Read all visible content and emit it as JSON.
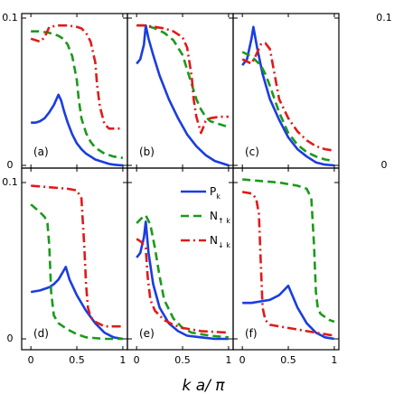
{
  "figure": {
    "xlabel": "k a/ π",
    "legend": {
      "entries": [
        {
          "label_main": "P",
          "label_sub": "k",
          "color": "#1a3de0",
          "dash": "solid"
        },
        {
          "label_main": "N",
          "label_sub": "↑ k",
          "color": "#1a9a1a",
          "dash": "dashed"
        },
        {
          "label_main": "N",
          "label_sub": "↓ k",
          "color": "#e01a1a",
          "dash": "dashdot"
        }
      ]
    }
  },
  "chart_data": [
    {
      "type": "line",
      "panel": "(a)",
      "xlim": [
        -0.1,
        1.05
      ],
      "ylim": [
        -0.005,
        0.105
      ],
      "x_ticks": [],
      "y_ticks": [
        "0",
        "0.1"
      ],
      "series": [
        {
          "name": "P_k",
          "x": [
            0,
            0.05,
            0.1,
            0.15,
            0.2,
            0.25,
            0.3,
            0.33,
            0.36,
            0.4,
            0.45,
            0.5,
            0.55,
            0.6,
            0.65,
            0.7,
            0.75,
            0.8,
            0.85,
            0.9,
            0.95,
            1.0
          ],
          "y": [
            0.029,
            0.029,
            0.03,
            0.032,
            0.036,
            0.041,
            0.048,
            0.044,
            0.037,
            0.029,
            0.021,
            0.015,
            0.011,
            0.008,
            0.006,
            0.004,
            0.003,
            0.002,
            0.001,
            0.0005,
            0.0002,
            0.0
          ]
        },
        {
          "name": "N_up",
          "x": [
            0,
            0.1,
            0.2,
            0.3,
            0.35,
            0.4,
            0.45,
            0.5,
            0.52,
            0.55,
            0.6,
            0.65,
            0.7,
            0.8,
            0.9,
            1.0
          ],
          "y": [
            0.091,
            0.091,
            0.09,
            0.088,
            0.086,
            0.082,
            0.074,
            0.058,
            0.045,
            0.032,
            0.022,
            0.016,
            0.012,
            0.008,
            0.006,
            0.005
          ]
        },
        {
          "name": "N_down",
          "x": [
            0,
            0.1,
            0.15,
            0.2,
            0.3,
            0.4,
            0.5,
            0.55,
            0.6,
            0.65,
            0.7,
            0.72,
            0.75,
            0.8,
            0.85,
            0.9,
            1.0
          ],
          "y": [
            0.086,
            0.084,
            0.087,
            0.094,
            0.095,
            0.095,
            0.094,
            0.093,
            0.09,
            0.084,
            0.07,
            0.055,
            0.04,
            0.028,
            0.025,
            0.025,
            0.025
          ]
        }
      ]
    },
    {
      "type": "line",
      "panel": "(b)",
      "xlim": [
        -0.1,
        1.05
      ],
      "ylim": [
        -0.005,
        0.105
      ],
      "x_ticks": [],
      "y_ticks": [],
      "series": [
        {
          "name": "P_k",
          "x": [
            0.0,
            0.04,
            0.08,
            0.1,
            0.13,
            0.18,
            0.25,
            0.35,
            0.45,
            0.55,
            0.65,
            0.75,
            0.85,
            0.95,
            1.0
          ],
          "y": [
            0.069,
            0.072,
            0.082,
            0.095,
            0.086,
            0.075,
            0.061,
            0.045,
            0.032,
            0.021,
            0.013,
            0.007,
            0.003,
            0.001,
            0.0
          ]
        },
        {
          "name": "N_up",
          "x": [
            0,
            0.1,
            0.2,
            0.3,
            0.4,
            0.5,
            0.55,
            0.6,
            0.65,
            0.7,
            0.75,
            0.8,
            0.9,
            1.0
          ],
          "y": [
            0.095,
            0.095,
            0.093,
            0.09,
            0.085,
            0.075,
            0.065,
            0.055,
            0.045,
            0.038,
            0.033,
            0.03,
            0.028,
            0.026
          ]
        },
        {
          "name": "N_down",
          "x": [
            0,
            0.1,
            0.2,
            0.3,
            0.4,
            0.5,
            0.55,
            0.6,
            0.62,
            0.65,
            0.7,
            0.72,
            0.75,
            0.8,
            0.9,
            1.0
          ],
          "y": [
            0.095,
            0.095,
            0.094,
            0.093,
            0.091,
            0.087,
            0.08,
            0.06,
            0.045,
            0.033,
            0.022,
            0.025,
            0.03,
            0.032,
            0.033,
            0.033
          ]
        }
      ]
    },
    {
      "type": "line",
      "panel": "(c)",
      "xlim": [
        -0.1,
        1.05
      ],
      "ylim": [
        -0.005,
        0.105
      ],
      "x_ticks": [],
      "y_ticks": [],
      "series": [
        {
          "name": "P_k",
          "x": [
            0.0,
            0.05,
            0.1,
            0.12,
            0.16,
            0.22,
            0.3,
            0.4,
            0.5,
            0.6,
            0.7,
            0.8,
            0.9,
            1.0
          ],
          "y": [
            0.068,
            0.072,
            0.086,
            0.094,
            0.08,
            0.062,
            0.045,
            0.031,
            0.019,
            0.011,
            0.006,
            0.002,
            0.0005,
            0.0
          ]
        },
        {
          "name": "N_up",
          "x": [
            0,
            0.1,
            0.2,
            0.25,
            0.3,
            0.35,
            0.4,
            0.5,
            0.6,
            0.7,
            0.8,
            0.9,
            1.0
          ],
          "y": [
            0.077,
            0.074,
            0.068,
            0.062,
            0.054,
            0.045,
            0.036,
            0.022,
            0.014,
            0.009,
            0.006,
            0.004,
            0.003
          ]
        },
        {
          "name": "N_down",
          "x": [
            0,
            0.1,
            0.15,
            0.2,
            0.25,
            0.3,
            0.35,
            0.4,
            0.5,
            0.6,
            0.7,
            0.8,
            0.9,
            1.0
          ],
          "y": [
            0.072,
            0.069,
            0.075,
            0.082,
            0.083,
            0.079,
            0.062,
            0.045,
            0.032,
            0.023,
            0.017,
            0.013,
            0.011,
            0.01
          ]
        }
      ]
    },
    {
      "type": "line",
      "panel": "(d)",
      "xlim": [
        -0.1,
        1.05
      ],
      "ylim": [
        -0.005,
        0.105
      ],
      "x_ticks": [],
      "y_ticks": [
        "0",
        "0.1"
      ],
      "series": [
        {
          "name": "P_k",
          "x": [
            0,
            0.1,
            0.2,
            0.25,
            0.3,
            0.35,
            0.38,
            0.42,
            0.5,
            0.6,
            0.7,
            0.8,
            0.9,
            1.0
          ],
          "y": [
            0.03,
            0.031,
            0.033,
            0.035,
            0.038,
            0.043,
            0.046,
            0.038,
            0.028,
            0.018,
            0.01,
            0.004,
            0.001,
            0.0
          ]
        },
        {
          "name": "N_up",
          "x": [
            0,
            0.1,
            0.15,
            0.18,
            0.2,
            0.22,
            0.25,
            0.3,
            0.4,
            0.5,
            0.6,
            0.8,
            1.0
          ],
          "y": [
            0.086,
            0.081,
            0.078,
            0.074,
            0.06,
            0.03,
            0.015,
            0.01,
            0.006,
            0.003,
            0.001,
            0.0,
            0.0
          ]
        },
        {
          "name": "N_down",
          "x": [
            0,
            0.2,
            0.4,
            0.5,
            0.55,
            0.58,
            0.6,
            0.62,
            0.65,
            0.7,
            0.8,
            0.9,
            1.0
          ],
          "y": [
            0.098,
            0.097,
            0.096,
            0.095,
            0.09,
            0.06,
            0.035,
            0.02,
            0.014,
            0.011,
            0.008,
            0.008,
            0.008
          ]
        }
      ]
    },
    {
      "type": "line",
      "panel": "(e)",
      "xlim": [
        -0.1,
        1.05
      ],
      "ylim": [
        -0.005,
        0.105
      ],
      "x_ticks": [],
      "y_ticks": [],
      "series": [
        {
          "name": "P_k",
          "x": [
            0.0,
            0.04,
            0.08,
            0.1,
            0.13,
            0.18,
            0.25,
            0.35,
            0.45,
            0.55,
            0.7,
            0.85,
            1.0
          ],
          "y": [
            0.052,
            0.055,
            0.065,
            0.075,
            0.055,
            0.035,
            0.02,
            0.01,
            0.005,
            0.002,
            0.001,
            0.0,
            0.0
          ]
        },
        {
          "name": "N_up",
          "x": [
            0,
            0.05,
            0.1,
            0.15,
            0.2,
            0.25,
            0.3,
            0.4,
            0.5,
            0.6,
            0.8,
            1.0
          ],
          "y": [
            0.074,
            0.077,
            0.079,
            0.073,
            0.058,
            0.04,
            0.025,
            0.013,
            0.007,
            0.004,
            0.002,
            0.001
          ]
        },
        {
          "name": "N_down",
          "x": [
            0,
            0.05,
            0.1,
            0.12,
            0.15,
            0.2,
            0.25,
            0.3,
            0.4,
            0.5,
            0.7,
            1.0
          ],
          "y": [
            0.064,
            0.062,
            0.058,
            0.04,
            0.025,
            0.018,
            0.015,
            0.012,
            0.009,
            0.007,
            0.005,
            0.004
          ]
        }
      ]
    },
    {
      "type": "line",
      "panel": "(f)",
      "xlim": [
        -0.1,
        1.05
      ],
      "ylim": [
        -0.005,
        0.105
      ],
      "x_ticks": [],
      "y_ticks": [],
      "series": [
        {
          "name": "P_k",
          "x": [
            0,
            0.1,
            0.2,
            0.3,
            0.4,
            0.45,
            0.5,
            0.55,
            0.6,
            0.7,
            0.8,
            0.9,
            1.0
          ],
          "y": [
            0.023,
            0.023,
            0.024,
            0.025,
            0.028,
            0.031,
            0.034,
            0.027,
            0.02,
            0.01,
            0.004,
            0.001,
            0.0
          ]
        },
        {
          "name": "N_up",
          "x": [
            0,
            0.2,
            0.4,
            0.6,
            0.7,
            0.75,
            0.78,
            0.8,
            0.82,
            0.85,
            0.9,
            0.95,
            1.0
          ],
          "y": [
            0.102,
            0.101,
            0.1,
            0.098,
            0.096,
            0.09,
            0.06,
            0.03,
            0.02,
            0.016,
            0.014,
            0.012,
            0.011
          ]
        },
        {
          "name": "N_down",
          "x": [
            0,
            0.1,
            0.15,
            0.18,
            0.2,
            0.22,
            0.25,
            0.3,
            0.4,
            0.5,
            0.6,
            0.7,
            0.8,
            0.9,
            1.0
          ],
          "y": [
            0.094,
            0.093,
            0.09,
            0.08,
            0.05,
            0.02,
            0.012,
            0.009,
            0.008,
            0.007,
            0.006,
            0.005,
            0.004,
            0.003,
            0.002
          ]
        }
      ]
    }
  ]
}
